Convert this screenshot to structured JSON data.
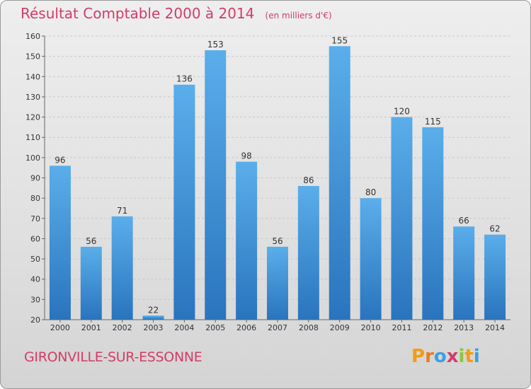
{
  "header": {
    "title": "Résultat Comptable 2000 à 2014",
    "unit": "(en milliers d'€)"
  },
  "footer": {
    "commune": "GIRONVILLE-SUR-ESSONNE",
    "logo_letters": [
      "P",
      "r",
      "o",
      "x",
      "i",
      "t",
      "i"
    ],
    "logo_colors": [
      "#f39c12",
      "#e67e22",
      "#3aa0e0",
      "#d23c68",
      "#8cc63f",
      "#f39c12",
      "#3aa0e0"
    ]
  },
  "colors": {
    "bar": "#3d8fd8",
    "bar_light": "#5aaeea",
    "bar_dark": "#2a74be",
    "title": "#d23c68"
  },
  "chart_data": {
    "type": "bar",
    "title": "Résultat Comptable 2000 à 2014",
    "subtitle": "(en milliers d'€)",
    "categories": [
      "2000",
      "2001",
      "2002",
      "2003",
      "2004",
      "2005",
      "2006",
      "2007",
      "2008",
      "2009",
      "2010",
      "2011",
      "2012",
      "2013",
      "2014"
    ],
    "values": [
      96,
      56,
      71,
      22,
      136,
      153,
      98,
      56,
      86,
      155,
      80,
      120,
      115,
      66,
      62
    ],
    "ylim": [
      20,
      160
    ],
    "yticks": [
      20,
      30,
      40,
      50,
      60,
      70,
      80,
      90,
      100,
      110,
      120,
      130,
      140,
      150,
      160
    ],
    "grid": true,
    "legend": "none"
  }
}
